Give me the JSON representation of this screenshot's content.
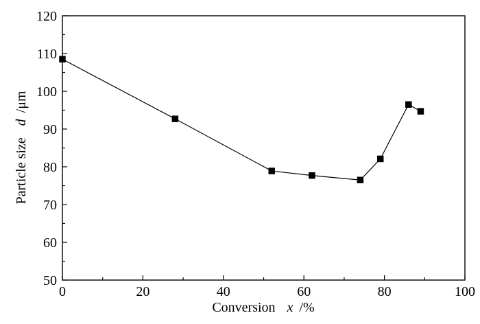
{
  "chart_data": {
    "type": "line",
    "title": "",
    "xlabel": "Conversion",
    "xlabel_var": "x",
    "xlabel_unit": "/%",
    "ylabel": "Particle size",
    "ylabel_var": "d",
    "ylabel_unit": "/μm",
    "xlim": [
      0,
      100
    ],
    "ylim": [
      50,
      120
    ],
    "x_ticks": [
      0,
      20,
      40,
      60,
      80,
      100
    ],
    "y_ticks": [
      50,
      60,
      70,
      80,
      90,
      100,
      110,
      120
    ],
    "x_ticks_labels": [
      "0",
      "20",
      "40",
      "60",
      "80",
      "100"
    ],
    "y_ticks_labels": [
      "50",
      "60",
      "70",
      "80",
      "90",
      "100",
      "110",
      "120"
    ],
    "grid": false,
    "marker": "square",
    "series": [
      {
        "x": [
          0,
          28,
          52,
          62,
          74,
          79,
          86,
          89
        ],
        "y": [
          108.5,
          92.7,
          78.9,
          77.7,
          76.5,
          82.1,
          96.5,
          94.7
        ]
      }
    ]
  }
}
